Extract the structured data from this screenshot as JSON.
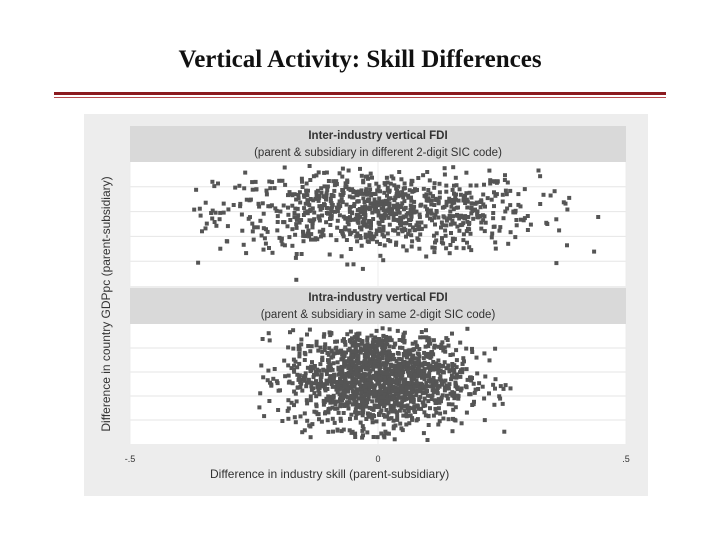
{
  "slide": {
    "title": "Vertical Activity: Skill Differences"
  },
  "colors": {
    "title_rule_dark": "#8b1a1f",
    "title_rule_light": "#b54a4e",
    "panel_background": "#ffffff",
    "strip_background": "#d9d9d9",
    "points": "#555555"
  },
  "chart_data": {
    "type": "scatter",
    "xlabel": "Difference in industry skill (parent-subsidiary)",
    "ylabel": "Difference in country GDPpc (parent-subsidiary)",
    "xlim": [
      -0.5,
      0.5
    ],
    "x_ticks": [
      -0.5,
      0,
      0.5
    ],
    "x_tick_labels": [
      "-.5",
      "0",
      ".5"
    ],
    "grid": true,
    "facets": [
      {
        "title": "Inter-industry vertical FDI",
        "subtitle": "(parent & subsidiary in different 2-digit SIC code)",
        "x_range": [
          -0.38,
          0.48
        ],
        "x_center": 0.0,
        "x_sd": 0.16,
        "y_range": [
          -0.15,
          1.0
        ],
        "y_center": 0.55,
        "y_sd": 0.2,
        "approx_points": 900
      },
      {
        "title": "Intra-industry vertical FDI",
        "subtitle": "(parent & subsidiary in same 2-digit SIC code)",
        "x_range": [
          -0.24,
          0.27
        ],
        "x_center": 0.0,
        "x_sd": 0.09,
        "y_range": [
          0.0,
          1.0
        ],
        "y_center": 0.55,
        "y_sd": 0.22,
        "approx_points": 1600
      }
    ]
  }
}
